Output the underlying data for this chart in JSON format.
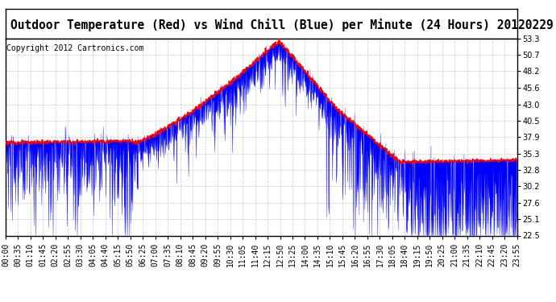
{
  "title": "Outdoor Temperature (Red) vs Wind Chill (Blue) per Minute (24 Hours) 20120229",
  "copyright": "Copyright 2012 Cartronics.com",
  "yticks": [
    22.5,
    25.1,
    27.6,
    30.2,
    32.8,
    35.3,
    37.9,
    40.5,
    43.0,
    45.6,
    48.2,
    50.7,
    53.3
  ],
  "ylim": [
    22.5,
    53.3
  ],
  "xtick_labels": [
    "00:00",
    "00:35",
    "01:10",
    "01:45",
    "02:20",
    "02:55",
    "03:30",
    "04:05",
    "04:40",
    "05:15",
    "05:50",
    "06:25",
    "07:00",
    "07:35",
    "08:10",
    "08:45",
    "09:20",
    "09:55",
    "10:30",
    "11:05",
    "11:40",
    "12:15",
    "12:50",
    "13:25",
    "14:00",
    "14:35",
    "15:10",
    "15:45",
    "16:20",
    "16:55",
    "17:30",
    "18:05",
    "18:40",
    "19:15",
    "19:50",
    "20:25",
    "21:00",
    "21:35",
    "22:10",
    "22:45",
    "23:20",
    "23:55"
  ],
  "bg_color": "#ffffff",
  "grid_color": "#bbbbbb",
  "red_color": "#ff0000",
  "blue_color": "#0000ff",
  "title_fontsize": 10.5,
  "copyright_fontsize": 7,
  "tick_fontsize": 7
}
